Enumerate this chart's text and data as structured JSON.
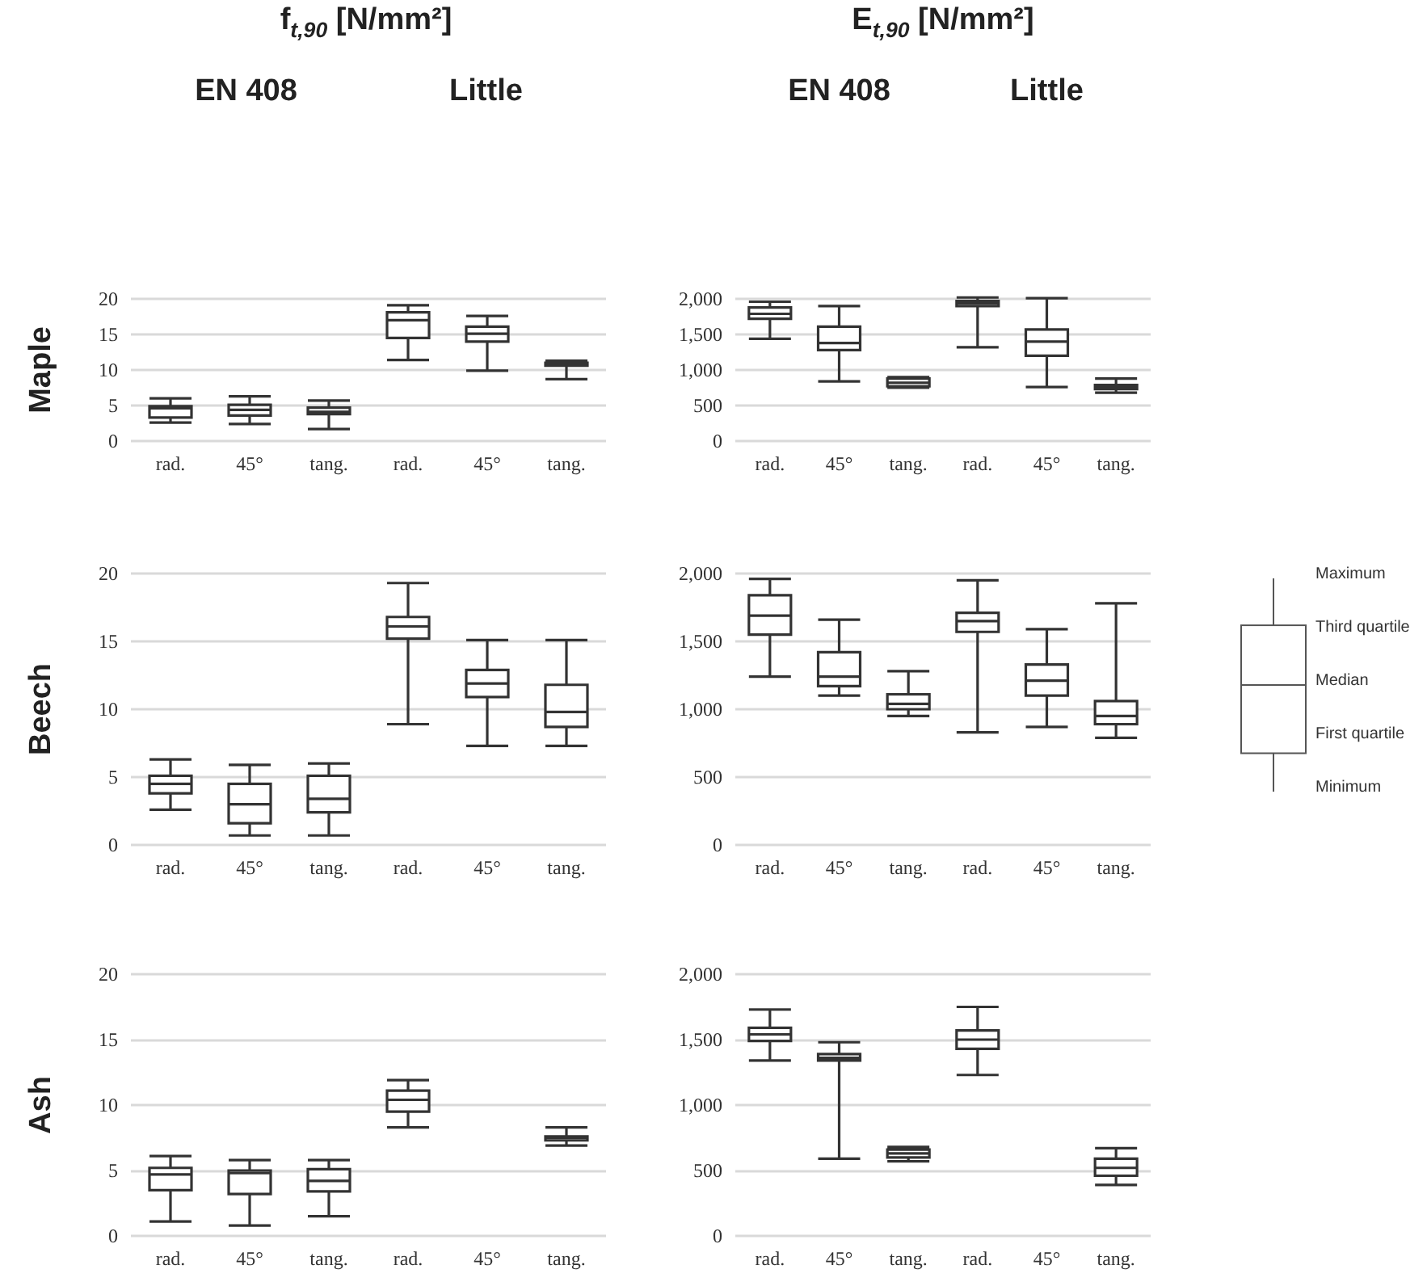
{
  "chart_data": [
    {
      "type": "box",
      "title": "f$_{t,90}$ [N/mm²]",
      "annotations": [
        "EN 408",
        "Little"
      ],
      "ylabel": "Maple",
      "color": "#333333",
      "categories": [
        "rad.",
        "45°",
        "tang.",
        "rad.",
        "45°",
        "tang."
      ],
      "ylim": [
        0,
        20
      ],
      "yticks": [
        0,
        5,
        10,
        15,
        20
      ],
      "grid": "y",
      "boxes": [
        {
          "low": 2.6,
          "q1": 3.3,
          "median": 4.6,
          "q3": 4.9,
          "high": 6.0
        },
        {
          "low": 2.4,
          "q1": 3.6,
          "median": 4.4,
          "q3": 5.1,
          "high": 6.3
        },
        {
          "low": 1.7,
          "q1": 3.8,
          "median": 4.1,
          "q3": 4.7,
          "high": 5.7
        },
        {
          "low": 11.4,
          "q1": 14.5,
          "median": 17.0,
          "q3": 18.1,
          "high": 19.1
        },
        {
          "low": 9.9,
          "q1": 14.0,
          "median": 15.1,
          "q3": 16.1,
          "high": 17.6
        },
        {
          "low": 8.7,
          "q1": 10.6,
          "median": 10.8,
          "q3": 11.0,
          "high": 11.3
        }
      ]
    },
    {
      "type": "box",
      "title": "E$_{t,90}$ [N/mm²]",
      "annotations": [
        "EN 408",
        "Little"
      ],
      "color": "#333333",
      "categories": [
        "rad.",
        "45°",
        "tang.",
        "rad.",
        "45°",
        "tang."
      ],
      "ylim": [
        0,
        2000
      ],
      "yticks": [
        0,
        500,
        {
          "value": 1000,
          "label": "1,000"
        },
        {
          "value": 1500,
          "label": "1,500"
        },
        {
          "value": 2000,
          "label": "2,000"
        }
      ],
      "grid": "y",
      "boxes": [
        {
          "low": 1440,
          "q1": 1720,
          "median": 1790,
          "q3": 1880,
          "high": 1960
        },
        {
          "low": 840,
          "q1": 1280,
          "median": 1380,
          "q3": 1610,
          "high": 1900
        },
        {
          "low": 750,
          "q1": 770,
          "median": 820,
          "q3": 880,
          "high": 900
        },
        {
          "low": 1320,
          "q1": 1900,
          "median": 1940,
          "q3": 1970,
          "high": 2020
        },
        {
          "low": 760,
          "q1": 1200,
          "median": 1400,
          "q3": 1570,
          "high": 2010
        },
        {
          "low": 680,
          "q1": 730,
          "median": 760,
          "q3": 790,
          "high": 880
        }
      ]
    },
    {
      "type": "box",
      "ylabel": "Beech",
      "color": "#333333",
      "categories": [
        "rad.",
        "45°",
        "tang.",
        "rad.",
        "45°",
        "tang."
      ],
      "ylim": [
        0,
        20
      ],
      "yticks": [
        0,
        5,
        10,
        15,
        20
      ],
      "grid": "y",
      "boxes": [
        {
          "low": 2.6,
          "q1": 3.8,
          "median": 4.5,
          "q3": 5.1,
          "high": 6.3
        },
        {
          "low": 0.7,
          "q1": 1.6,
          "median": 3.0,
          "q3": 4.5,
          "high": 5.9
        },
        {
          "low": 0.7,
          "q1": 2.4,
          "median": 3.4,
          "q3": 5.1,
          "high": 6.0
        },
        {
          "low": 8.9,
          "q1": 15.2,
          "median": 16.1,
          "q3": 16.8,
          "high": 19.3
        },
        {
          "low": 7.3,
          "q1": 10.9,
          "median": 11.9,
          "q3": 12.9,
          "high": 15.1
        },
        {
          "low": 7.3,
          "q1": 8.7,
          "median": 9.8,
          "q3": 11.8,
          "high": 15.1
        }
      ]
    },
    {
      "type": "box",
      "color": "#333333",
      "categories": [
        "rad.",
        "45°",
        "tang.",
        "rad.",
        "45°",
        "tang."
      ],
      "ylim": [
        0,
        2000
      ],
      "yticks": [
        0,
        500,
        {
          "value": 1000,
          "label": "1,000"
        },
        {
          "value": 1500,
          "label": "1,500"
        },
        {
          "value": 2000,
          "label": "2,000"
        }
      ],
      "grid": "y",
      "boxes": [
        {
          "low": 1240,
          "q1": 1550,
          "median": 1690,
          "q3": 1840,
          "high": 1960
        },
        {
          "low": 1100,
          "q1": 1170,
          "median": 1240,
          "q3": 1420,
          "high": 1660
        },
        {
          "low": 950,
          "q1": 1000,
          "median": 1040,
          "q3": 1110,
          "high": 1280
        },
        {
          "low": 830,
          "q1": 1570,
          "median": 1650,
          "q3": 1710,
          "high": 1950
        },
        {
          "low": 870,
          "q1": 1100,
          "median": 1210,
          "q3": 1330,
          "high": 1590
        },
        {
          "low": 790,
          "q1": 890,
          "median": 950,
          "q3": 1060,
          "high": 1780
        }
      ]
    },
    {
      "type": "box",
      "ylabel": "Ash",
      "color": "#333333",
      "categories": [
        "rad.",
        "45°",
        "tang.",
        "rad.",
        "45°",
        "tang."
      ],
      "ylim": [
        0,
        20
      ],
      "yticks": [
        0,
        5,
        10,
        15,
        20
      ],
      "grid": "y",
      "boxes": [
        {
          "low": 1.1,
          "q1": 3.5,
          "median": 4.7,
          "q3": 5.2,
          "high": 6.1
        },
        {
          "low": 0.8,
          "q1": 3.2,
          "median": 4.8,
          "q3": 5.0,
          "high": 5.8
        },
        {
          "low": 1.5,
          "q1": 3.4,
          "median": 4.2,
          "q3": 5.1,
          "high": 5.8
        },
        {
          "low": 8.3,
          "q1": 9.5,
          "median": 10.4,
          "q3": 11.1,
          "high": 11.9
        },
        null,
        {
          "low": 6.9,
          "q1": 7.3,
          "median": 7.5,
          "q3": 7.6,
          "high": 8.3
        }
      ]
    },
    {
      "type": "box",
      "color": "#333333",
      "categories": [
        "rad.",
        "45°",
        "tang.",
        "rad.",
        "45°",
        "tang."
      ],
      "ylim": [
        0,
        2000
      ],
      "yticks": [
        0,
        500,
        {
          "value": 1000,
          "label": "1,000"
        },
        {
          "value": 1500,
          "label": "1,500"
        },
        {
          "value": 2000,
          "label": "2,000"
        }
      ],
      "grid": "y",
      "boxes": [
        {
          "low": 1340,
          "q1": 1490,
          "median": 1540,
          "q3": 1590,
          "high": 1730
        },
        {
          "low": 590,
          "q1": 1340,
          "median": 1360,
          "q3": 1390,
          "high": 1480
        },
        {
          "low": 570,
          "q1": 600,
          "median": 630,
          "q3": 660,
          "high": 680
        },
        {
          "low": 1230,
          "q1": 1430,
          "median": 1500,
          "q3": 1570,
          "high": 1750
        },
        null,
        {
          "low": 390,
          "q1": 460,
          "median": 520,
          "q3": 590,
          "high": 670
        }
      ]
    },
    {
      "type": "other",
      "annotations": [
        "Maximum",
        "Third quartile",
        "Median",
        "First quartile",
        "Minimum"
      ]
    }
  ]
}
